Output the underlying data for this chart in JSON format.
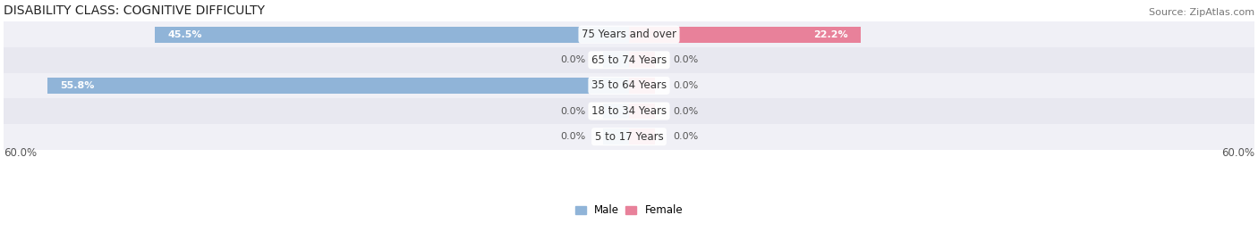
{
  "title": "DISABILITY CLASS: COGNITIVE DIFFICULTY",
  "source": "Source: ZipAtlas.com",
  "categories": [
    "5 to 17 Years",
    "18 to 34 Years",
    "35 to 64 Years",
    "65 to 74 Years",
    "75 Years and over"
  ],
  "male_values": [
    0.0,
    0.0,
    55.8,
    0.0,
    45.5
  ],
  "female_values": [
    0.0,
    0.0,
    0.0,
    0.0,
    22.2
  ],
  "male_color": "#90b4d8",
  "female_color": "#e8819a",
  "max_val": 60.0,
  "title_fontsize": 10,
  "source_fontsize": 8,
  "label_fontsize": 8.5,
  "axis_label_fontsize": 8.5,
  "row_colors": [
    "#f0f0f6",
    "#e8e8f0"
  ]
}
